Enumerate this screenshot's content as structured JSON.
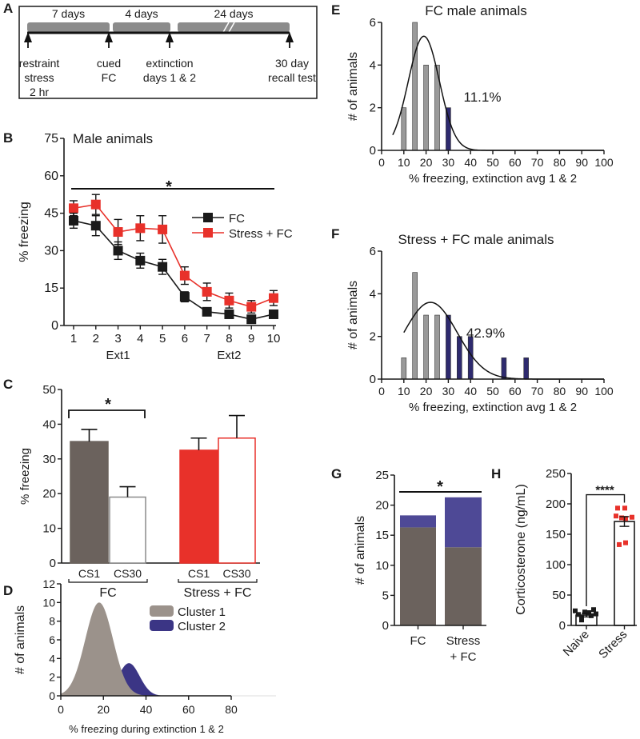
{
  "colors": {
    "fc": "#1a1a1a",
    "stress": "#e8312a",
    "bar_fc": "#6b625d",
    "cluster1": "#9b928b",
    "cluster2": "#3b3585",
    "cluster2_bar": "#4e4996",
    "hist_grey": "#9a9a9a",
    "hist_blue": "#2e2a6e",
    "timeline_bar": "#8c8c8c"
  },
  "chart_data": [
    {
      "panel": "A",
      "type": "timeline",
      "segments": [
        {
          "label": "7 days"
        },
        {
          "label": "4 days"
        },
        {
          "label": "24 days",
          "broken": true
        }
      ],
      "events": [
        {
          "lines": [
            "restraint",
            "stress",
            "2 hr"
          ]
        },
        {
          "lines": [
            "cued",
            "FC"
          ]
        },
        {
          "lines": [
            "extinction",
            "days 1 & 2"
          ]
        },
        {
          "lines": [
            "30 day",
            "recall test"
          ]
        }
      ]
    },
    {
      "panel": "B",
      "type": "line",
      "title": "Male animals",
      "ylabel": "% freezing",
      "xlabel_groups": [
        {
          "label": "Ext1",
          "center": 3
        },
        {
          "label": "Ext2",
          "center": 8
        }
      ],
      "x": [
        1,
        2,
        3,
        4,
        5,
        6,
        7,
        8,
        9,
        10
      ],
      "yticks": [
        0,
        15,
        30,
        45,
        60,
        75
      ],
      "ylim": [
        0,
        75
      ],
      "significance": "*",
      "series": [
        {
          "name": "FC",
          "color_key": "fc",
          "values": [
            42,
            40,
            30,
            26,
            23.5,
            11.5,
            5.5,
            4.5,
            2.5,
            4.5
          ],
          "errors": [
            3,
            4,
            3.5,
            3,
            3,
            2,
            1.5,
            1.5,
            1.5,
            1.5
          ]
        },
        {
          "name": "Stress + FC",
          "color_key": "stress",
          "values": [
            47,
            48.5,
            37.5,
            39,
            38.5,
            20,
            13.5,
            10,
            7.5,
            11
          ],
          "errors": [
            3,
            4,
            5,
            5,
            5.5,
            3.5,
            3.5,
            3,
            2.5,
            3
          ]
        }
      ]
    },
    {
      "panel": "C",
      "type": "bar",
      "ylabel": "% freezing",
      "yticks": [
        0,
        10,
        20,
        30,
        40,
        50
      ],
      "ylim": [
        0,
        50
      ],
      "significance": "*",
      "groups": [
        {
          "label": "FC",
          "bars": [
            {
              "label": "CS1",
              "value": 35,
              "error": 3.5,
              "style": "fill-fc"
            },
            {
              "label": "CS30",
              "value": 19,
              "error": 3,
              "style": "outline-grey"
            }
          ]
        },
        {
          "label": "Stress + FC",
          "bars": [
            {
              "label": "CS1",
              "value": 32.5,
              "error": 3.5,
              "style": "fill-stress"
            },
            {
              "label": "CS30",
              "value": 36,
              "error": 6.5,
              "style": "outline-red"
            }
          ]
        }
      ]
    },
    {
      "panel": "D",
      "type": "area",
      "ylabel": "# of animals",
      "xlabel": "% freezing during extinction 1 & 2",
      "xticks": [
        0,
        20,
        40,
        60,
        80
      ],
      "yticks": [
        0,
        2,
        4,
        6,
        8,
        10,
        12
      ],
      "xlim": [
        0,
        80
      ],
      "ylim": [
        0,
        12
      ],
      "series": [
        {
          "name": "Cluster 1",
          "color_key": "cluster1",
          "mean": 18,
          "sd": 6.5,
          "peak": 10
        },
        {
          "name": "Cluster 2",
          "color_key": "cluster2",
          "mean": 32,
          "sd": 5,
          "peak": 3.5
        }
      ]
    },
    {
      "panel": "E",
      "type": "bar",
      "title": "FC male animals",
      "ylabel": "# of animals",
      "xlabel": "% freezing, extinction avg 1 & 2",
      "xticks": [
        0,
        10,
        20,
        30,
        40,
        50,
        60,
        70,
        80,
        90,
        100
      ],
      "yticks": [
        0,
        2,
        4,
        6
      ],
      "xlim": [
        0,
        100
      ],
      "ylim": [
        0,
        6
      ],
      "annotation": "11.1%",
      "bins": [
        {
          "x": 10,
          "count": 2,
          "cluster": 1
        },
        {
          "x": 15,
          "count": 6,
          "cluster": 1
        },
        {
          "x": 20,
          "count": 4,
          "cluster": 1
        },
        {
          "x": 25,
          "count": 4,
          "cluster": 1
        },
        {
          "x": 30,
          "count": 2,
          "cluster": 2
        }
      ],
      "fit": {
        "mean": 19,
        "sd": 7,
        "peak": 5.35,
        "from": 5,
        "to": 100
      }
    },
    {
      "panel": "F",
      "type": "bar",
      "title": "Stress + FC male animals",
      "ylabel": "# of animals",
      "xlabel": "% freezing, extinction avg 1 & 2",
      "xticks": [
        0,
        10,
        20,
        30,
        40,
        50,
        60,
        70,
        80,
        90,
        100
      ],
      "yticks": [
        0,
        2,
        4,
        6
      ],
      "xlim": [
        0,
        100
      ],
      "ylim": [
        0,
        6
      ],
      "annotation": "42.9%",
      "bins": [
        {
          "x": 10,
          "count": 1,
          "cluster": 1
        },
        {
          "x": 15,
          "count": 5,
          "cluster": 1
        },
        {
          "x": 20,
          "count": 3,
          "cluster": 1
        },
        {
          "x": 25,
          "count": 3,
          "cluster": 1
        },
        {
          "x": 30,
          "count": 3,
          "cluster": 2
        },
        {
          "x": 35,
          "count": 2,
          "cluster": 2
        },
        {
          "x": 40,
          "count": 2,
          "cluster": 2
        },
        {
          "x": 55,
          "count": 1,
          "cluster": 2
        },
        {
          "x": 65,
          "count": 1,
          "cluster": 2
        }
      ],
      "fit": {
        "mean": 22,
        "sd": 12,
        "peak": 3.6,
        "from": 10,
        "to": 100
      }
    },
    {
      "panel": "G",
      "type": "bar",
      "stacked": true,
      "ylabel": "# of animals",
      "yticks": [
        0,
        5,
        10,
        15,
        20,
        25
      ],
      "ylim": [
        0,
        25
      ],
      "significance": "*",
      "categories": [
        [
          "FC"
        ],
        [
          "Stress",
          "+ FC"
        ]
      ],
      "series": [
        {
          "name": "Cluster 1",
          "color_key": "bar_fc",
          "values": [
            16.3,
            13
          ]
        },
        {
          "name": "Cluster 2",
          "color_key": "cluster2_bar",
          "values": [
            2,
            8.3
          ]
        }
      ]
    },
    {
      "panel": "H",
      "type": "bar",
      "ylabel": "Corticosterone (ng/mL)",
      "yticks": [
        0,
        50,
        100,
        150,
        200,
        250
      ],
      "ylim": [
        0,
        250
      ],
      "significance": "****",
      "categories": [
        "Naive",
        "Stress"
      ],
      "means": [
        17,
        171
      ],
      "errors": [
        3,
        8
      ],
      "points": [
        [
          24,
          18,
          14,
          22,
          9,
          21,
          16,
          26,
          19
        ],
        [
          193,
          193,
          180,
          177,
          176,
          178,
          133,
          136
        ]
      ]
    }
  ]
}
